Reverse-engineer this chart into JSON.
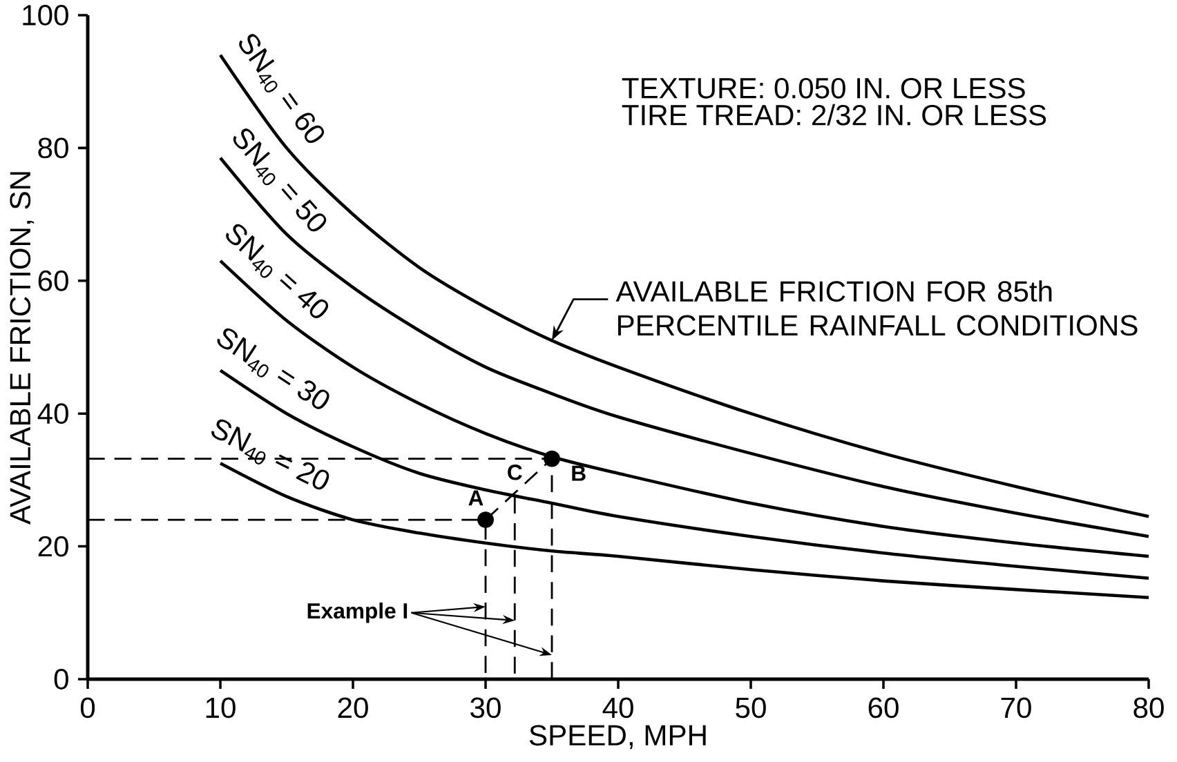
{
  "chart_data": {
    "type": "line",
    "xlabel": "SPEED, MPH",
    "ylabel": "AVAILABLE FRICTION, SN",
    "x": [
      10,
      15,
      20,
      25,
      30,
      35,
      40,
      50,
      60,
      70,
      80
    ],
    "series": [
      {
        "name": "SN$_{40}$ = 60",
        "color": "#000000",
        "values": [
          94,
          80,
          70,
          62,
          56,
          51,
          47,
          40,
          34,
          29,
          24.5
        ]
      },
      {
        "name": "SN$_{40}$ = 50",
        "color": "#000000",
        "values": [
          78.5,
          67,
          59,
          52.5,
          47,
          43,
          39.5,
          34,
          29,
          25,
          21.5
        ]
      },
      {
        "name": "SN$_{40}$ = 40",
        "color": "#000000",
        "values": [
          63,
          54,
          47,
          41.5,
          37,
          33.5,
          31,
          26.5,
          23,
          20.5,
          18.5
        ]
      },
      {
        "name": "SN$_{40}$ = 30",
        "color": "#000000",
        "values": [
          46.5,
          40,
          35,
          31,
          28.5,
          26.5,
          24.5,
          21.5,
          19,
          17,
          15.2
        ]
      },
      {
        "name": "SN$_{40}$ = 20",
        "color": "#000000",
        "values": [
          32.5,
          27.5,
          24,
          22,
          20.5,
          19.3,
          18.5,
          16.5,
          14.8,
          13.5,
          12.3
        ]
      },
      {
        "color": "#000000",
        "line_style": "dashed",
        "x": [
          0,
          35,
          35
        ],
        "values": [
          33.2,
          33.2,
          0
        ]
      },
      {
        "color": "#000000",
        "line_style": "dashed",
        "x": [
          0,
          30,
          30
        ],
        "values": [
          24,
          24,
          0
        ]
      },
      {
        "color": "#000000",
        "line_style": "dashed",
        "x": [
          30,
          35
        ],
        "values": [
          24,
          33.2
        ]
      },
      {
        "color": "#000000",
        "line_style": "dashed",
        "x": [
          32.2,
          32.2
        ],
        "values": [
          27.5,
          0
        ]
      },
      {
        "type": "scatter",
        "color": "#000000",
        "marker": "circle",
        "x": [
          30,
          35
        ],
        "values": [
          24,
          33.2
        ]
      }
    ],
    "xlim": [
      0,
      80
    ],
    "ylim": [
      0,
      100
    ],
    "xticks": [
      0,
      10,
      20,
      30,
      40,
      50,
      60,
      70,
      80
    ],
    "yticks": [
      0,
      20,
      40,
      60,
      80,
      100
    ],
    "annotations": [
      "TEXTURE: 0.050 IN. OR LESS",
      "TIRE TREAD: 2/32 IN. OR LESS",
      "AVAILABLE FRICTION FOR 85th PERCENTILE RAINFALL CONDITIONS",
      {
        "text": "A",
        "x": 30,
        "y": 24
      },
      {
        "text": "B",
        "x": 35,
        "y": 33.2
      },
      {
        "text": "C",
        "x": 32.2,
        "y": 27.5
      },
      "Example I"
    ],
    "grid": false
  }
}
